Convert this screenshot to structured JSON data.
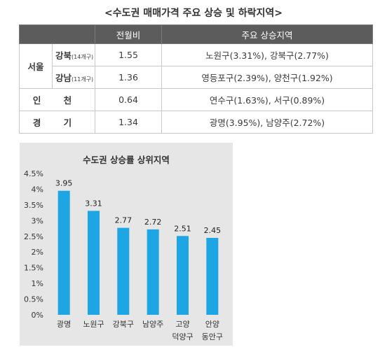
{
  "page_title": "<수도권 매매가격 주요 상승 및 하락지역>",
  "table": {
    "headers": [
      "",
      "전월비",
      "주요 상승지역"
    ],
    "seoul_label": "서울",
    "rows": [
      {
        "sub": "강북",
        "sub_note": "(14개구)",
        "change": "1.55",
        "areas": "노원구(3.31%), 강북구(2.77%)"
      },
      {
        "sub": "강남",
        "sub_note": "(11개구)",
        "change": "1.36",
        "areas": "영등포구(2.39%), 양천구(1.92%)"
      },
      {
        "region": "인 천",
        "change": "0.64",
        "areas": "연수구(1.63%), 서구(0.89%)"
      },
      {
        "region": "경 기",
        "change": "1.34",
        "areas": "광명(3.95%), 남양주(2.72%)"
      }
    ]
  },
  "chart_data": {
    "type": "bar",
    "title": "수도권 상승률 상위지역",
    "categories": [
      [
        "광명"
      ],
      [
        "노원구"
      ],
      [
        "강북구"
      ],
      [
        "남양주"
      ],
      [
        "고양",
        "덕양구"
      ],
      [
        "안양",
        "동안구"
      ]
    ],
    "values": [
      3.95,
      3.31,
      2.77,
      2.72,
      2.51,
      2.45
    ],
    "value_labels": [
      "3.95",
      "3.31",
      "2.77",
      "2.72",
      "2.51",
      "2.45"
    ],
    "ylim": [
      0,
      4.5
    ],
    "yticks": [
      "0%",
      "0.5%",
      "1%",
      "1.5%",
      "2%",
      "2.5%",
      "3%",
      "3.5%",
      "4%",
      "4.5%"
    ],
    "grid": false,
    "bar_color": "#1ea6e4"
  }
}
